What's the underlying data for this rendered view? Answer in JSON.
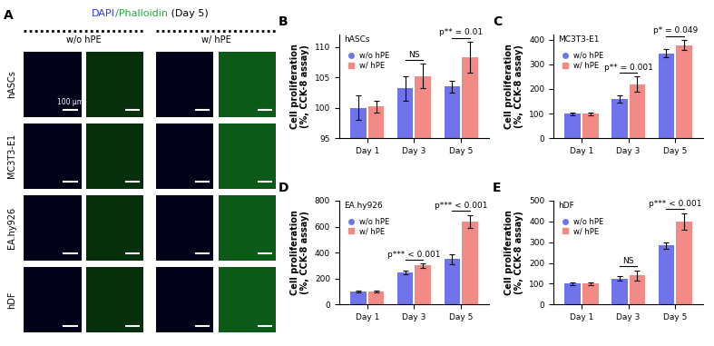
{
  "panel_a": {
    "panel": "A",
    "title_parts": [
      {
        "text": "DAPI",
        "color": "#2b3cf0"
      },
      {
        "text": "/Phalloidin",
        "color": "#22a83a"
      },
      {
        "text": " (Day 5)",
        "color": "#000000"
      }
    ],
    "groups": [
      "w/o hPE",
      "w/ hPE"
    ],
    "rows": [
      "hASCs",
      "MC3T3-E1",
      "EA.hy926",
      "hDF"
    ],
    "scale_bar": "100 μm"
  },
  "chart_data": [
    {
      "type": "bar",
      "panel": "B",
      "title": "hASCs",
      "categories": [
        "Day 1",
        "Day 3",
        "Day 5"
      ],
      "ylabel": "Cell proliferation\n(%, CCK-8 assay)",
      "ylim": [
        95,
        112
      ],
      "yticks": [
        95,
        100,
        105,
        110
      ],
      "legend": "upper left",
      "series": [
        {
          "name": "w/o hPE",
          "color": "#6f74ea",
          "marker": "circle",
          "values": [
            100.0,
            103.2,
            103.5
          ],
          "errors": [
            2.0,
            2.0,
            1.0
          ]
        },
        {
          "name": "w/ hPE",
          "color": "#f28a86",
          "marker": "square",
          "values": [
            100.2,
            105.2,
            108.3
          ],
          "errors": [
            1.0,
            2.0,
            2.5
          ]
        }
      ],
      "annotations": [
        {
          "category": "Day 3",
          "text": "NS"
        },
        {
          "category": "Day 5",
          "text": "p** = 0.01"
        }
      ]
    },
    {
      "type": "bar",
      "panel": "C",
      "title": "MC3T3-E1",
      "categories": [
        "Day 1",
        "Day 3",
        "Day 5"
      ],
      "ylabel": "Cell proliferation\n(%, CCK-8 assay)",
      "ylim": [
        0,
        420
      ],
      "yticks": [
        0,
        100,
        200,
        300,
        400
      ],
      "legend": "upper left",
      "series": [
        {
          "name": "w/o hPE",
          "color": "#6f74ea",
          "marker": "circle",
          "values": [
            100,
            160,
            345
          ],
          "errors": [
            5,
            15,
            15
          ]
        },
        {
          "name": "w/ hPE",
          "color": "#f28a86",
          "marker": "square",
          "values": [
            100,
            220,
            378
          ],
          "errors": [
            5,
            30,
            20
          ]
        }
      ],
      "annotations": [
        {
          "category": "Day 3",
          "text": "p** = 0.001"
        },
        {
          "category": "Day 5",
          "text": "p* = 0.049"
        }
      ]
    },
    {
      "type": "bar",
      "panel": "D",
      "title": "EA.hy926",
      "categories": [
        "Day 1",
        "Day 3",
        "Day 5"
      ],
      "ylabel": "Cell proliferation\n(%, CCK-8 assay)",
      "ylim": [
        0,
        800
      ],
      "yticks": [
        0,
        200,
        400,
        600,
        800
      ],
      "legend": "upper left",
      "series": [
        {
          "name": "w/o hPE",
          "color": "#6f74ea",
          "marker": "circle",
          "values": [
            100,
            245,
            350
          ],
          "errors": [
            5,
            15,
            40
          ]
        },
        {
          "name": "w/ hPE",
          "color": "#f28a86",
          "marker": "square",
          "values": [
            100,
            300,
            640
          ],
          "errors": [
            5,
            15,
            50
          ]
        }
      ],
      "annotations": [
        {
          "category": "Day 3",
          "text": "p*** < 0.001"
        },
        {
          "category": "Day 5",
          "text": "p*** < 0.001"
        }
      ]
    },
    {
      "type": "bar",
      "panel": "E",
      "title": "hDF",
      "categories": [
        "Day 1",
        "Day 3",
        "Day 5"
      ],
      "ylabel": "Cell proliferation\n(%, CCK-8 assay)",
      "ylim": [
        0,
        500
      ],
      "yticks": [
        0,
        100,
        200,
        300,
        400,
        500
      ],
      "legend": "upper left",
      "series": [
        {
          "name": "w/o hPE",
          "color": "#6f74ea",
          "marker": "circle",
          "values": [
            100,
            125,
            285
          ],
          "errors": [
            5,
            10,
            15
          ]
        },
        {
          "name": "w/ hPE",
          "color": "#f28a86",
          "marker": "square",
          "values": [
            100,
            140,
            400
          ],
          "errors": [
            5,
            25,
            40
          ]
        }
      ],
      "annotations": [
        {
          "category": "Day 3",
          "text": "NS"
        },
        {
          "category": "Day 5",
          "text": "p*** < 0.001"
        }
      ]
    }
  ]
}
